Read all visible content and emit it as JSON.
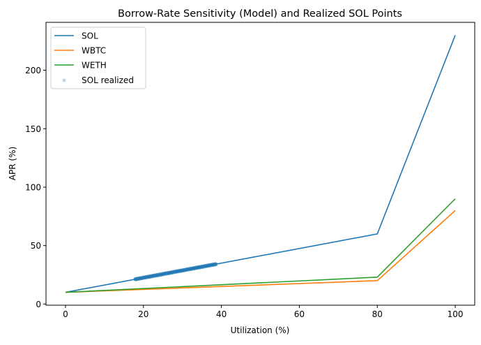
{
  "chart_data": {
    "type": "line",
    "title": "Borrow-Rate Sensitivity (Model) and Realized SOL Points",
    "xlabel": "Utilization (%)",
    "ylabel": "APR (%)",
    "xlim": [
      -5,
      105
    ],
    "ylim": [
      -1,
      241
    ],
    "xticks": [
      0,
      20,
      40,
      60,
      80,
      100
    ],
    "yticks": [
      0,
      50,
      100,
      150,
      200
    ],
    "grid": false,
    "legend_position": "top-left",
    "series": [
      {
        "name": "SOL",
        "color": "#1f77b4",
        "x": [
          0,
          80,
          100
        ],
        "y": [
          10,
          60,
          230
        ]
      },
      {
        "name": "WBTC",
        "color": "#ff7f0e",
        "x": [
          0,
          80,
          100
        ],
        "y": [
          10,
          20,
          80
        ]
      },
      {
        "name": "WETH",
        "color": "#2ca02c",
        "x": [
          0,
          80,
          100
        ],
        "y": [
          10,
          23,
          90
        ]
      }
    ],
    "scatter": {
      "name": "SOL realized",
      "color": "#1f77b4",
      "x": [
        18,
        18.5,
        19,
        19.5,
        20,
        20.5,
        21,
        21.5,
        22,
        22.5,
        23,
        23.5,
        24,
        24.5,
        25,
        25.5,
        26,
        26.5,
        27,
        27.5,
        28,
        28.5,
        29,
        29.5,
        30,
        30.5,
        31,
        31.5,
        32,
        32.5,
        33,
        33.5,
        34,
        34.5,
        35,
        35.5,
        36,
        36.5,
        37,
        37.5,
        38,
        38.5
      ],
      "y": [
        21.25,
        21.56,
        21.88,
        22.19,
        22.5,
        22.81,
        23.13,
        23.44,
        23.75,
        24.06,
        24.38,
        24.69,
        25,
        25.31,
        25.63,
        25.94,
        26.25,
        26.56,
        26.88,
        27.19,
        27.5,
        27.81,
        28.13,
        28.44,
        28.75,
        29.06,
        29.38,
        29.69,
        30,
        30.31,
        30.63,
        30.94,
        31.25,
        31.56,
        31.88,
        32.19,
        32.5,
        32.81,
        33.13,
        33.44,
        33.75,
        34.06
      ]
    }
  }
}
